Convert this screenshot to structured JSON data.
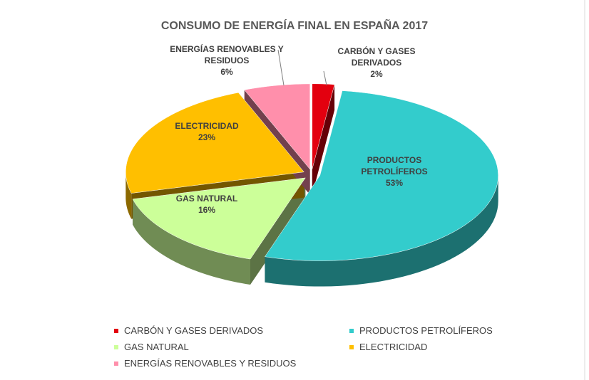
{
  "chart_data": {
    "type": "pie",
    "title": "CONSUMO DE ENERGÍA FINAL EN ESPAÑA  2017",
    "categories": [
      "CARBÓN Y GASES DERIVADOS",
      "PRODUCTOS PETROLÍFEROS",
      "GAS NATURAL",
      "ELECTRICIDAD",
      "ENERGÍAS RENOVABLES Y RESIDUOS"
    ],
    "values": [
      2,
      53,
      16,
      23,
      6
    ],
    "value_labels": [
      "2%",
      "53%",
      "16%",
      "23%",
      "6%"
    ],
    "colors": [
      "#e3000f",
      "#33cccc",
      "#ccff99",
      "#ffbf00",
      "#ff8fab"
    ],
    "legend": "bottom"
  }
}
